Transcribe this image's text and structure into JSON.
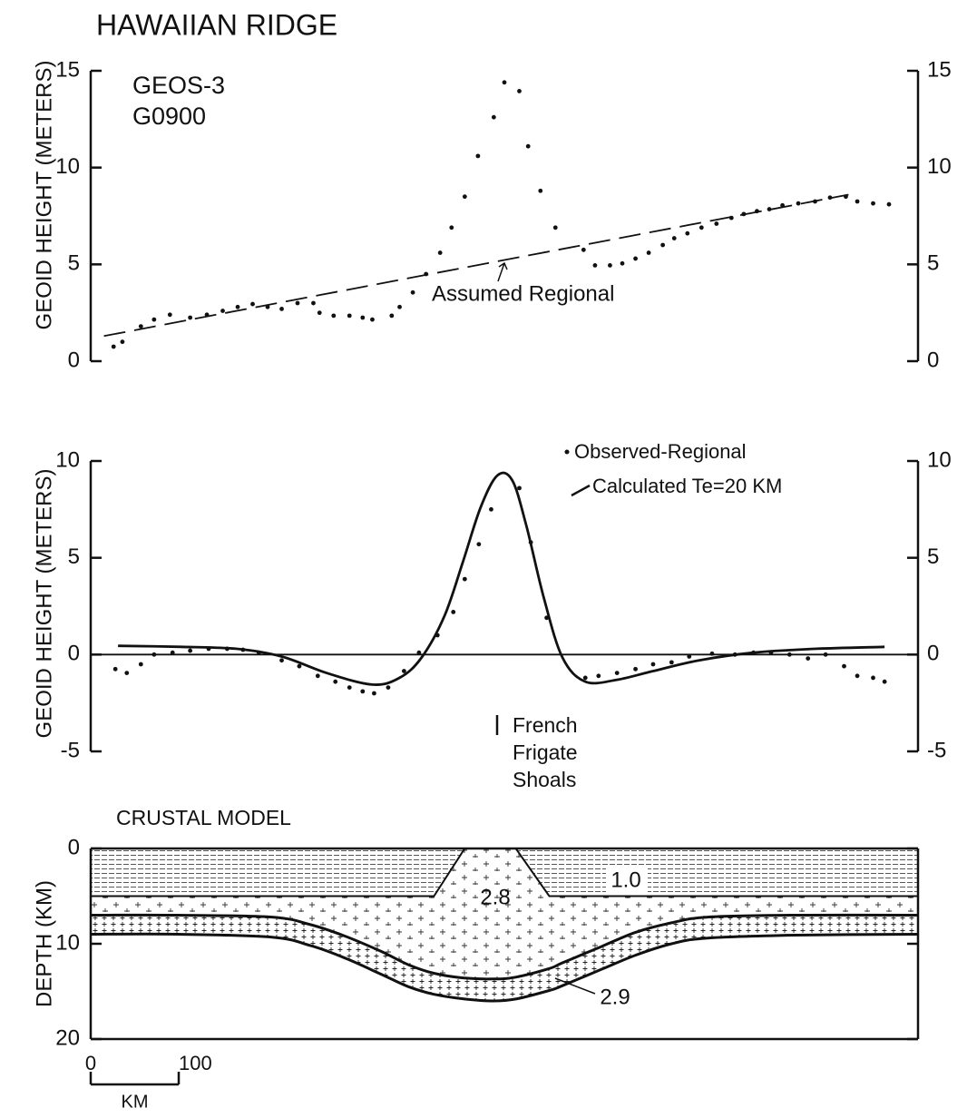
{
  "chart_data": [
    {
      "type": "scatter",
      "title": "HAWAIIAN RIDGE",
      "labels": [
        "GEOS-3",
        "G0900"
      ],
      "y_label": "GEOID HEIGHT (METERS)",
      "xlim": [
        0,
        940
      ],
      "ylim": [
        0,
        15
      ],
      "yticks": [
        0,
        5,
        10,
        15
      ],
      "right_labels": true,
      "frame": "left-right",
      "series": [
        {
          "type": "scatter",
          "color": "#111111",
          "x": [
            26,
            36,
            57,
            72,
            90,
            113,
            132,
            150,
            167,
            184,
            201,
            217,
            235,
            253,
            260,
            276,
            294,
            309,
            320,
            342,
            351,
            366,
            381,
            397,
            410,
            425,
            440,
            458,
            470,
            487,
            497,
            511,
            528,
            560,
            573,
            590,
            604,
            619,
            634,
            650,
            663,
            678,
            694,
            711,
            728,
            742,
            757,
            771,
            786,
            804,
            823,
            840,
            858,
            871,
            889,
            907
          ],
          "values": [
            0.75,
            1.0,
            1.8,
            2.15,
            2.4,
            2.25,
            2.4,
            2.6,
            2.8,
            2.95,
            2.8,
            2.7,
            3.0,
            3.0,
            2.5,
            2.35,
            2.35,
            2.25,
            2.15,
            2.35,
            2.8,
            3.55,
            4.5,
            5.6,
            6.9,
            8.5,
            10.6,
            12.6,
            14.4,
            13.95,
            11.1,
            8.8,
            6.9,
            5.75,
            4.95,
            4.95,
            5.05,
            5.3,
            5.6,
            6.0,
            6.35,
            6.6,
            6.9,
            7.1,
            7.4,
            7.6,
            7.75,
            7.85,
            8.05,
            8.15,
            8.25,
            8.45,
            8.5,
            8.25,
            8.15,
            8.1
          ]
        },
        {
          "type": "line",
          "name": "Assumed Regional",
          "style": "dashed",
          "color": "#111111",
          "x": [
            15,
            861
          ],
          "values": [
            1.3,
            8.6
          ]
        }
      ]
    },
    {
      "type": "scatter",
      "y_label": "GEOID HEIGHT (METERS)",
      "xlim": [
        0,
        940
      ],
      "ylim": [
        -5,
        10
      ],
      "yticks": [
        -5,
        0,
        5,
        10
      ],
      "right_labels": true,
      "frame": "left-right",
      "zero_line": true,
      "legend": "top-right",
      "annotation": [
        "French",
        "Frigate",
        "Shoals"
      ],
      "series": [
        {
          "type": "scatter",
          "name": "Observed-Regional",
          "color": "#111111",
          "x": [
            28,
            41,
            57,
            72,
            93,
            113,
            134,
            155,
            173,
            191,
            217,
            237,
            258,
            278,
            294,
            309,
            322,
            338,
            356,
            373,
            394,
            412,
            425,
            441,
            455,
            487,
            500,
            518,
            562,
            577,
            598,
            619,
            639,
            660,
            680,
            706,
            732,
            753,
            773,
            794,
            815,
            835,
            856,
            871,
            889,
            902
          ],
          "values": [
            -0.75,
            -0.95,
            -0.5,
            0,
            0.1,
            0.2,
            0.3,
            0.3,
            0.25,
            0.1,
            -0.3,
            -0.6,
            -1.1,
            -1.4,
            -1.7,
            -1.9,
            -2.0,
            -1.7,
            -0.85,
            0.1,
            1.0,
            2.2,
            3.9,
            5.7,
            7.5,
            8.6,
            5.8,
            1.9,
            -1.2,
            -1.1,
            -0.95,
            -0.75,
            -0.5,
            -0.4,
            -0.1,
            0.05,
            0,
            0.1,
            0.1,
            0,
            -0.2,
            0,
            -0.6,
            -1.1,
            -1.2,
            -1.4
          ]
        },
        {
          "type": "line",
          "name": "Calculated Te=20 KM",
          "style": "solid",
          "smooth": true,
          "color": "#111111",
          "x": [
            31,
            103,
            165,
            217,
            268,
            320,
            351,
            376,
            402,
            423,
            443,
            462,
            479,
            495,
            515,
            536,
            562,
            598,
            639,
            691,
            753,
            825,
            902
          ],
          "values": [
            0.45,
            0.4,
            0.3,
            -0.1,
            -0.95,
            -1.55,
            -1.2,
            -0.15,
            2.0,
            4.8,
            7.6,
            9.25,
            9.0,
            6.65,
            2.9,
            -0.15,
            -1.4,
            -1.3,
            -0.85,
            -0.3,
            0.1,
            0.3,
            0.4
          ]
        }
      ]
    },
    {
      "type": "profile",
      "title": "CRUSTAL MODEL",
      "y_label": "DEPTH (KM)",
      "xlim": [
        0,
        940
      ],
      "ylim": [
        0,
        20
      ],
      "yticks": [
        0,
        10,
        20
      ],
      "y_inverted": true,
      "frame": "box",
      "x": [
        0,
        100,
        206,
        250,
        289,
        330,
        361,
        390,
        425,
        457,
        483,
        521,
        536,
        580,
        619,
        660,
        701,
        800,
        940
      ],
      "layers": [
        {
          "label": "1.0",
          "smooth": false,
          "values": [
            5,
            5,
            5,
            5,
            5,
            5,
            5,
            5,
            0,
            0,
            0,
            5,
            5,
            5,
            5,
            5,
            5,
            5,
            5
          ]
        },
        {
          "label": "2.8",
          "smooth": true,
          "values": [
            7,
            7,
            7.2,
            8,
            9.2,
            10.8,
            12.2,
            13.1,
            13.6,
            13.7,
            13.5,
            12.6,
            12,
            10.3,
            8.8,
            7.8,
            7.2,
            7,
            7
          ]
        },
        {
          "label": "2.9",
          "smooth": true,
          "values": [
            9,
            9,
            9.3,
            10.2,
            11.5,
            13.2,
            14.5,
            15.3,
            15.8,
            16,
            15.8,
            14.9,
            14.4,
            12.7,
            11.2,
            10,
            9.4,
            9.1,
            9
          ]
        }
      ],
      "scale_bar": {
        "ticks": [
          0,
          100
        ],
        "label": "KM"
      }
    }
  ]
}
